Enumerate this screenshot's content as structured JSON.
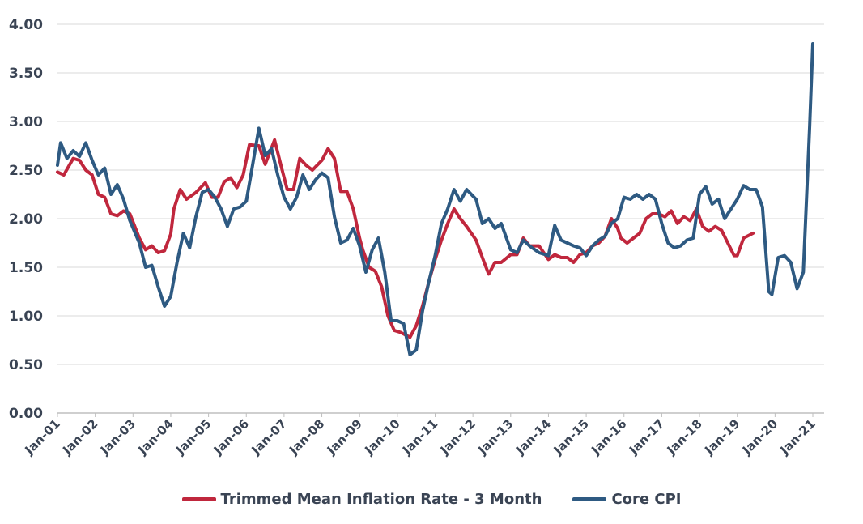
{
  "chart_data": {
    "type": "line",
    "title": "",
    "xlabel": "",
    "ylabel": "",
    "ylim": [
      0,
      4
    ],
    "yticks": [
      "0.00",
      "0.50",
      "1.00",
      "1.50",
      "2.00",
      "2.50",
      "3.00",
      "3.50",
      "4.00"
    ],
    "xticks": [
      "Jan-01",
      "Jan-02",
      "Jan-03",
      "Jan-04",
      "Jan-05",
      "Jan-06",
      "Jan-07",
      "Jan-08",
      "Jan-09",
      "Jan-10",
      "Jan-11",
      "Jan-12",
      "Jan-13",
      "Jan-14",
      "Jan-15",
      "Jan-16",
      "Jan-17",
      "Jan-18",
      "Jan-19",
      "Jan-20",
      "Jan-21"
    ],
    "grid": "horizontal",
    "legend_position": "bottom",
    "series": [
      {
        "name": "Trimmed Mean Inflation Rate - 3 Month",
        "color": "#c0273d",
        "points": [
          [
            "2001-01",
            2.48
          ],
          [
            "2001-03",
            2.45
          ],
          [
            "2001-06",
            2.62
          ],
          [
            "2001-08",
            2.6
          ],
          [
            "2001-10",
            2.5
          ],
          [
            "2001-12",
            2.45
          ],
          [
            "2002-02",
            2.25
          ],
          [
            "2002-04",
            2.22
          ],
          [
            "2002-06",
            2.05
          ],
          [
            "2002-08",
            2.03
          ],
          [
            "2002-10",
            2.08
          ],
          [
            "2002-12",
            2.05
          ],
          [
            "2003-03",
            1.8
          ],
          [
            "2003-05",
            1.68
          ],
          [
            "2003-07",
            1.72
          ],
          [
            "2003-09",
            1.65
          ],
          [
            "2003-11",
            1.67
          ],
          [
            "2004-01",
            1.84
          ],
          [
            "2004-02",
            2.1
          ],
          [
            "2004-04",
            2.3
          ],
          [
            "2004-06",
            2.2
          ],
          [
            "2004-09",
            2.27
          ],
          [
            "2004-12",
            2.37
          ],
          [
            "2005-02",
            2.22
          ],
          [
            "2005-04",
            2.22
          ],
          [
            "2005-06",
            2.38
          ],
          [
            "2005-08",
            2.42
          ],
          [
            "2005-10",
            2.32
          ],
          [
            "2005-12",
            2.45
          ],
          [
            "2006-02",
            2.76
          ],
          [
            "2006-05",
            2.75
          ],
          [
            "2006-07",
            2.56
          ],
          [
            "2006-10",
            2.81
          ],
          [
            "2006-12",
            2.55
          ],
          [
            "2007-02",
            2.3
          ],
          [
            "2007-04",
            2.3
          ],
          [
            "2007-06",
            2.62
          ],
          [
            "2007-08",
            2.55
          ],
          [
            "2007-10",
            2.5
          ],
          [
            "2008-01",
            2.6
          ],
          [
            "2008-03",
            2.72
          ],
          [
            "2008-05",
            2.62
          ],
          [
            "2008-07",
            2.28
          ],
          [
            "2008-09",
            2.28
          ],
          [
            "2008-11",
            2.1
          ],
          [
            "2009-01",
            1.8
          ],
          [
            "2009-02",
            1.68
          ],
          [
            "2009-04",
            1.5
          ],
          [
            "2009-06",
            1.46
          ],
          [
            "2009-08",
            1.3
          ],
          [
            "2009-10",
            1.0
          ],
          [
            "2009-12",
            0.85
          ],
          [
            "2010-02",
            0.83
          ],
          [
            "2010-05",
            0.78
          ],
          [
            "2010-07",
            0.9
          ],
          [
            "2010-09",
            1.1
          ],
          [
            "2010-11",
            1.35
          ],
          [
            "2011-01",
            1.58
          ],
          [
            "2011-03",
            1.78
          ],
          [
            "2011-05",
            1.95
          ],
          [
            "2011-07",
            2.1
          ],
          [
            "2011-09",
            2.0
          ],
          [
            "2011-11",
            1.92
          ],
          [
            "2012-02",
            1.78
          ],
          [
            "2012-04",
            1.6
          ],
          [
            "2012-06",
            1.43
          ],
          [
            "2012-08",
            1.55
          ],
          [
            "2012-10",
            1.55
          ],
          [
            "2013-01",
            1.63
          ],
          [
            "2013-03",
            1.63
          ],
          [
            "2013-05",
            1.8
          ],
          [
            "2013-07",
            1.72
          ],
          [
            "2013-10",
            1.72
          ],
          [
            "2014-01",
            1.58
          ],
          [
            "2014-03",
            1.63
          ],
          [
            "2014-05",
            1.6
          ],
          [
            "2014-07",
            1.6
          ],
          [
            "2014-09",
            1.55
          ],
          [
            "2014-11",
            1.63
          ],
          [
            "2015-01",
            1.65
          ],
          [
            "2015-03",
            1.72
          ],
          [
            "2015-05",
            1.75
          ],
          [
            "2015-07",
            1.82
          ],
          [
            "2015-09",
            2.0
          ],
          [
            "2015-11",
            1.9
          ],
          [
            "2015-12",
            1.8
          ],
          [
            "2016-02",
            1.75
          ],
          [
            "2016-04",
            1.8
          ],
          [
            "2016-06",
            1.85
          ],
          [
            "2016-08",
            2.0
          ],
          [
            "2016-10",
            2.05
          ],
          [
            "2016-12",
            2.05
          ],
          [
            "2017-02",
            2.02
          ],
          [
            "2017-04",
            2.08
          ],
          [
            "2017-06",
            1.95
          ],
          [
            "2017-08",
            2.02
          ],
          [
            "2017-10",
            1.98
          ],
          [
            "2017-12",
            2.1
          ],
          [
            "2018-02",
            1.92
          ],
          [
            "2018-04",
            1.87
          ],
          [
            "2018-06",
            1.92
          ],
          [
            "2018-08",
            1.88
          ],
          [
            "2018-10",
            1.75
          ],
          [
            "2018-12",
            1.62
          ],
          [
            "2019-01",
            1.62
          ],
          [
            "2019-03",
            1.8
          ],
          [
            "2019-06",
            1.85
          ]
        ]
      },
      {
        "name": "Core CPI",
        "color": "#2e5a82",
        "points": [
          [
            "2001-01",
            2.55
          ],
          [
            "2001-02",
            2.78
          ],
          [
            "2001-04",
            2.62
          ],
          [
            "2001-06",
            2.7
          ],
          [
            "2001-08",
            2.64
          ],
          [
            "2001-10",
            2.78
          ],
          [
            "2001-12",
            2.6
          ],
          [
            "2002-02",
            2.45
          ],
          [
            "2002-04",
            2.52
          ],
          [
            "2002-06",
            2.25
          ],
          [
            "2002-08",
            2.35
          ],
          [
            "2002-10",
            2.2
          ],
          [
            "2002-12",
            1.98
          ],
          [
            "2003-03",
            1.75
          ],
          [
            "2003-05",
            1.5
          ],
          [
            "2003-07",
            1.52
          ],
          [
            "2003-09",
            1.3
          ],
          [
            "2003-11",
            1.1
          ],
          [
            "2004-01",
            1.2
          ],
          [
            "2004-03",
            1.55
          ],
          [
            "2004-05",
            1.85
          ],
          [
            "2004-07",
            1.7
          ],
          [
            "2004-09",
            2.02
          ],
          [
            "2004-11",
            2.27
          ],
          [
            "2005-01",
            2.3
          ],
          [
            "2005-03",
            2.22
          ],
          [
            "2005-05",
            2.1
          ],
          [
            "2005-07",
            1.92
          ],
          [
            "2005-09",
            2.1
          ],
          [
            "2005-11",
            2.12
          ],
          [
            "2006-01",
            2.18
          ],
          [
            "2006-03",
            2.55
          ],
          [
            "2006-05",
            2.93
          ],
          [
            "2006-07",
            2.65
          ],
          [
            "2006-09",
            2.72
          ],
          [
            "2006-11",
            2.45
          ],
          [
            "2007-01",
            2.22
          ],
          [
            "2007-03",
            2.1
          ],
          [
            "2007-05",
            2.22
          ],
          [
            "2007-07",
            2.45
          ],
          [
            "2007-09",
            2.3
          ],
          [
            "2007-11",
            2.4
          ],
          [
            "2008-01",
            2.47
          ],
          [
            "2008-03",
            2.42
          ],
          [
            "2008-05",
            2.02
          ],
          [
            "2008-07",
            1.75
          ],
          [
            "2008-09",
            1.78
          ],
          [
            "2008-11",
            1.9
          ],
          [
            "2009-01",
            1.72
          ],
          [
            "2009-03",
            1.45
          ],
          [
            "2009-05",
            1.68
          ],
          [
            "2009-07",
            1.8
          ],
          [
            "2009-09",
            1.45
          ],
          [
            "2009-11",
            0.95
          ],
          [
            "2010-01",
            0.95
          ],
          [
            "2010-03",
            0.92
          ],
          [
            "2010-05",
            0.6
          ],
          [
            "2010-07",
            0.65
          ],
          [
            "2010-09",
            1.05
          ],
          [
            "2010-11",
            1.35
          ],
          [
            "2011-01",
            1.62
          ],
          [
            "2011-03",
            1.95
          ],
          [
            "2011-05",
            2.1
          ],
          [
            "2011-07",
            2.3
          ],
          [
            "2011-09",
            2.18
          ],
          [
            "2011-11",
            2.3
          ],
          [
            "2012-02",
            2.2
          ],
          [
            "2012-04",
            1.95
          ],
          [
            "2012-06",
            2.0
          ],
          [
            "2012-08",
            1.9
          ],
          [
            "2012-10",
            1.95
          ],
          [
            "2013-01",
            1.68
          ],
          [
            "2013-03",
            1.65
          ],
          [
            "2013-05",
            1.78
          ],
          [
            "2013-07",
            1.72
          ],
          [
            "2013-10",
            1.65
          ],
          [
            "2014-01",
            1.62
          ],
          [
            "2014-03",
            1.93
          ],
          [
            "2014-05",
            1.78
          ],
          [
            "2014-07",
            1.75
          ],
          [
            "2014-09",
            1.72
          ],
          [
            "2014-11",
            1.7
          ],
          [
            "2015-01",
            1.62
          ],
          [
            "2015-03",
            1.72
          ],
          [
            "2015-05",
            1.78
          ],
          [
            "2015-07",
            1.82
          ],
          [
            "2015-09",
            1.95
          ],
          [
            "2015-11",
            2.0
          ],
          [
            "2016-01",
            2.22
          ],
          [
            "2016-03",
            2.2
          ],
          [
            "2016-05",
            2.25
          ],
          [
            "2016-07",
            2.2
          ],
          [
            "2016-09",
            2.25
          ],
          [
            "2016-11",
            2.2
          ],
          [
            "2017-01",
            1.95
          ],
          [
            "2017-03",
            1.75
          ],
          [
            "2017-05",
            1.7
          ],
          [
            "2017-07",
            1.72
          ],
          [
            "2017-09",
            1.78
          ],
          [
            "2017-11",
            1.8
          ],
          [
            "2018-01",
            2.25
          ],
          [
            "2018-03",
            2.33
          ],
          [
            "2018-05",
            2.15
          ],
          [
            "2018-07",
            2.2
          ],
          [
            "2018-09",
            2.0
          ],
          [
            "2018-11",
            2.1
          ],
          [
            "2019-01",
            2.2
          ],
          [
            "2019-03",
            2.34
          ],
          [
            "2019-05",
            2.3
          ],
          [
            "2019-07",
            2.3
          ],
          [
            "2019-09",
            2.12
          ],
          [
            "2019-11",
            1.25
          ],
          [
            "2019-12",
            1.22
          ],
          [
            "2020-02",
            1.6
          ],
          [
            "2020-04",
            1.62
          ],
          [
            "2020-06",
            1.55
          ],
          [
            "2020-08",
            1.28
          ],
          [
            "2020-10",
            1.45
          ],
          [
            "2020-12",
            2.95
          ],
          [
            "2021-01",
            3.8
          ]
        ]
      }
    ]
  },
  "legend": {
    "item1": "Trimmed Mean Inflation Rate - 3 Month",
    "item2": "Core CPI"
  }
}
